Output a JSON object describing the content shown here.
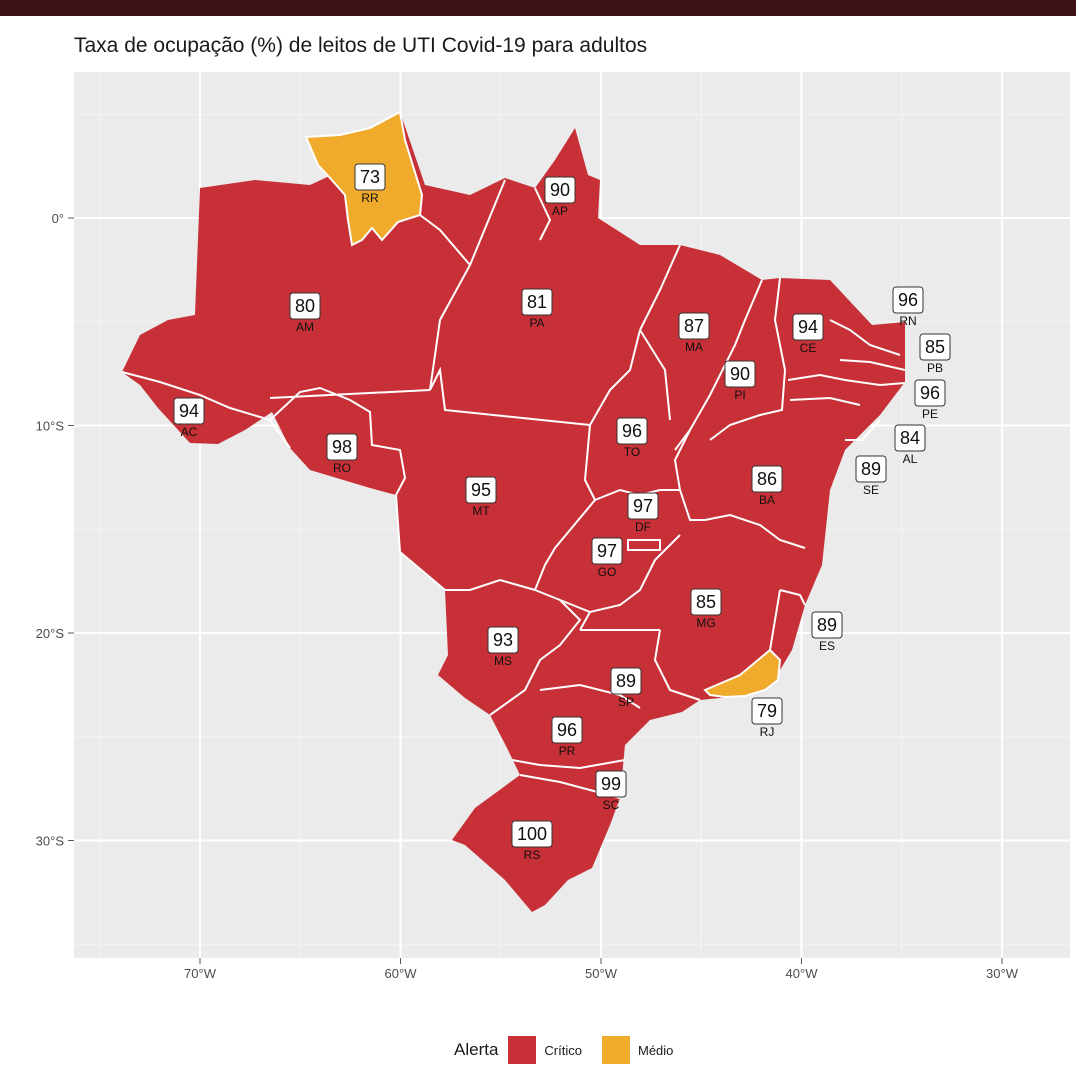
{
  "title": "Taxa de ocupação (%) de leitos de UTI Covid-19 para adultos",
  "colors": {
    "critico": "#c73037",
    "medio": "#f0ab2c",
    "panel": "#ebebeb",
    "grid": "#ffffff",
    "topbar": "#3d1216"
  },
  "axis": {
    "x_ticks": [
      {
        "value": -70,
        "label": "70°W"
      },
      {
        "value": -60,
        "label": "60°W"
      },
      {
        "value": -50,
        "label": "50°W"
      },
      {
        "value": -40,
        "label": "40°W"
      },
      {
        "value": -30,
        "label": "30°W"
      }
    ],
    "y_ticks": [
      {
        "value": 0,
        "label": "0°"
      },
      {
        "value": -10,
        "label": "10°S"
      },
      {
        "value": -20,
        "label": "20°S"
      },
      {
        "value": -30,
        "label": "30°S"
      }
    ]
  },
  "legend": {
    "title": "Alerta",
    "items": [
      {
        "label": "Crítico",
        "color_key": "critico"
      },
      {
        "label": "Médio",
        "color_key": "medio"
      }
    ]
  },
  "states": [
    {
      "uf": "RR",
      "value": 73,
      "alert": "medio"
    },
    {
      "uf": "AP",
      "value": 90,
      "alert": "critico"
    },
    {
      "uf": "AM",
      "value": 80,
      "alert": "critico"
    },
    {
      "uf": "PA",
      "value": 81,
      "alert": "critico"
    },
    {
      "uf": "MA",
      "value": 87,
      "alert": "critico"
    },
    {
      "uf": "CE",
      "value": 94,
      "alert": "critico"
    },
    {
      "uf": "RN",
      "value": 96,
      "alert": "critico"
    },
    {
      "uf": "PB",
      "value": 85,
      "alert": "critico"
    },
    {
      "uf": "PI",
      "value": 90,
      "alert": "critico"
    },
    {
      "uf": "PE",
      "value": 96,
      "alert": "critico"
    },
    {
      "uf": "AC",
      "value": 94,
      "alert": "critico"
    },
    {
      "uf": "TO",
      "value": 96,
      "alert": "critico"
    },
    {
      "uf": "AL",
      "value": 84,
      "alert": "critico"
    },
    {
      "uf": "RO",
      "value": 98,
      "alert": "critico"
    },
    {
      "uf": "SE",
      "value": 89,
      "alert": "critico"
    },
    {
      "uf": "BA",
      "value": 86,
      "alert": "critico"
    },
    {
      "uf": "MT",
      "value": 95,
      "alert": "critico"
    },
    {
      "uf": "DF",
      "value": 97,
      "alert": "critico"
    },
    {
      "uf": "GO",
      "value": 97,
      "alert": "critico"
    },
    {
      "uf": "MG",
      "value": 85,
      "alert": "critico"
    },
    {
      "uf": "ES",
      "value": 89,
      "alert": "critico"
    },
    {
      "uf": "MS",
      "value": 93,
      "alert": "critico"
    },
    {
      "uf": "SP",
      "value": 89,
      "alert": "critico"
    },
    {
      "uf": "RJ",
      "value": 79,
      "alert": "medio"
    },
    {
      "uf": "PR",
      "value": 96,
      "alert": "critico"
    },
    {
      "uf": "SC",
      "value": 99,
      "alert": "critico"
    },
    {
      "uf": "RS",
      "value": 100,
      "alert": "critico"
    }
  ]
}
